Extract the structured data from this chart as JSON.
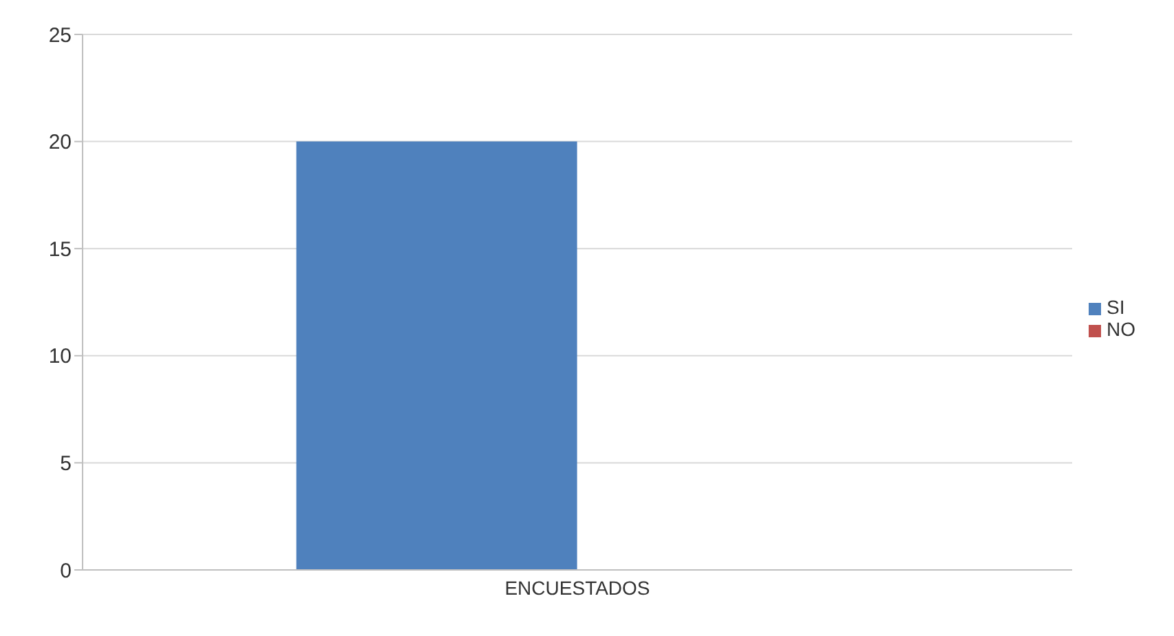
{
  "chart_data": {
    "type": "bar",
    "categories": [
      "ENCUESTADOS"
    ],
    "series": [
      {
        "name": "SI",
        "color": "#4f81bd",
        "values": [
          20
        ]
      },
      {
        "name": "NO",
        "color": "#c0504d",
        "values": [
          0
        ]
      }
    ],
    "ylim": [
      0,
      25
    ],
    "yticks": [
      0,
      5,
      10,
      15,
      20,
      25
    ],
    "grid": "y",
    "legend": "right"
  }
}
